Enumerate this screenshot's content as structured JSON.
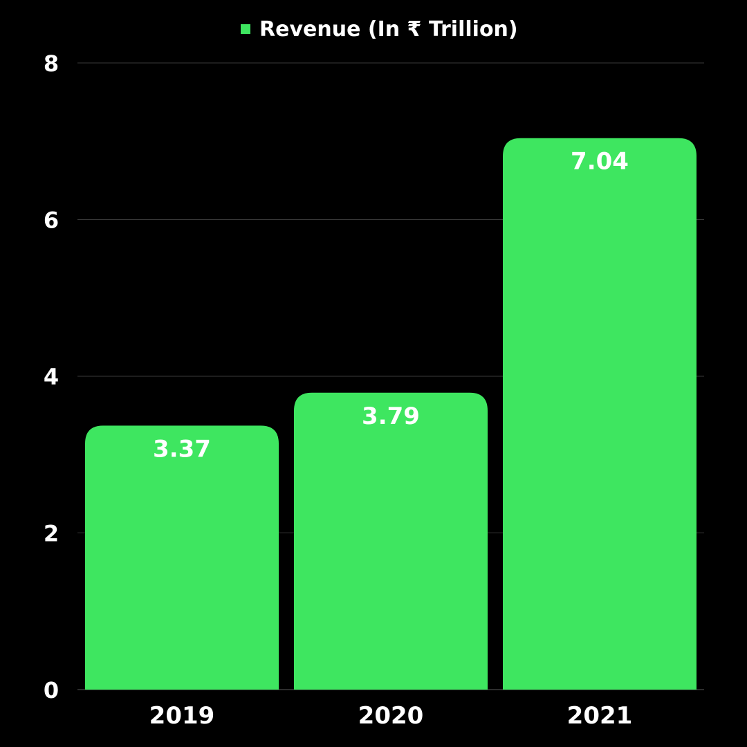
{
  "chart_data": {
    "type": "bar",
    "categories": [
      "2019",
      "2020",
      "2021"
    ],
    "series": [
      {
        "name": "Revenue (In ₹ Trillion)",
        "values": [
          3.37,
          3.79,
          7.04
        ]
      }
    ],
    "data_labels": [
      "3.37",
      "3.79",
      "7.04"
    ],
    "y_ticks": [
      "0",
      "2",
      "4",
      "6",
      "8"
    ],
    "ylim": [
      0,
      8
    ],
    "grid": true,
    "legend_position": "top-center",
    "colors": {
      "bar": "#3ee660",
      "background": "#000000",
      "text": "#ffffff"
    }
  }
}
